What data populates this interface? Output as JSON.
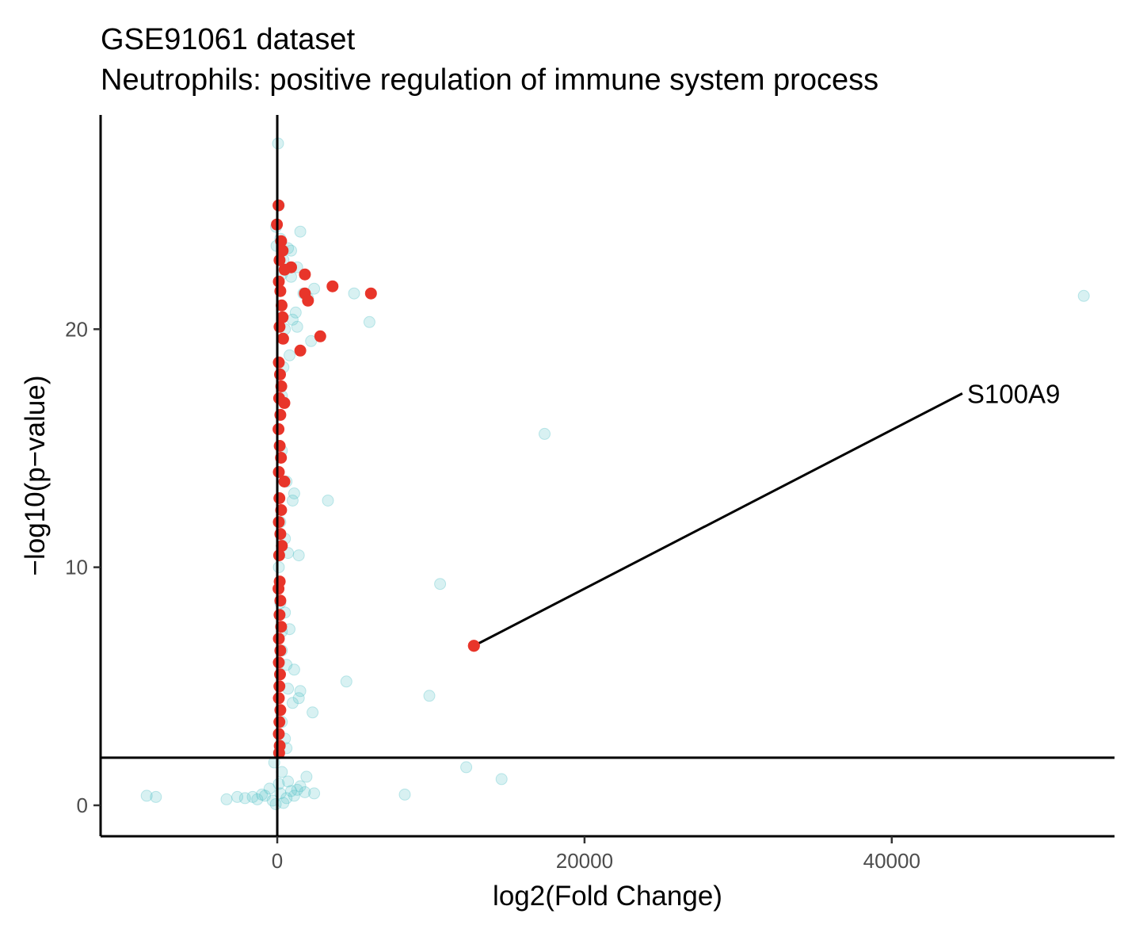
{
  "chart_data": {
    "type": "scatter",
    "title": "GSE91061 dataset",
    "subtitle": "Neutrophils: positive regulation of immune system process",
    "xlabel": "log2(Fold Change)",
    "ylabel": "−log10(p−value)",
    "xlim": [
      -11500,
      54500
    ],
    "ylim": [
      -1.3,
      29
    ],
    "x_ticks": [
      0,
      20000,
      40000
    ],
    "x_tick_labels": [
      "0",
      "20000",
      "40000"
    ],
    "y_ticks": [
      0,
      10,
      20
    ],
    "y_tick_labels": [
      "0",
      "10",
      "20"
    ],
    "grid": false,
    "legend": "none",
    "reference_lines": {
      "vertical_x": 0,
      "horizontal_y": 2
    },
    "colors": {
      "background_points": "#4fbfc6",
      "highlighted_points": "#e8352a",
      "reference_lines": "#000000"
    },
    "series": [
      {
        "role": "background",
        "points": [
          [
            50,
            27.8
          ],
          [
            100,
            25.2
          ],
          [
            -80,
            24.3
          ],
          [
            1500,
            24.1
          ],
          [
            200,
            23.8
          ],
          [
            -50,
            23.5
          ],
          [
            700,
            23.4
          ],
          [
            900,
            23.3
          ],
          [
            400,
            22.9
          ],
          [
            1300,
            22.6
          ],
          [
            300,
            22.3
          ],
          [
            900,
            22.2
          ],
          [
            2400,
            21.7
          ],
          [
            5000,
            21.5
          ],
          [
            1700,
            21.5
          ],
          [
            52500,
            21.4
          ],
          [
            2000,
            21.3
          ],
          [
            1200,
            20.7
          ],
          [
            1000,
            20.4
          ],
          [
            6000,
            20.3
          ],
          [
            1300,
            20.1
          ],
          [
            500,
            20.0
          ],
          [
            2200,
            19.5
          ],
          [
            800,
            18.9
          ],
          [
            400,
            18.4
          ],
          [
            300,
            17.2
          ],
          [
            17400,
            15.6
          ],
          [
            300,
            14.9
          ],
          [
            600,
            13.6
          ],
          [
            1100,
            13.1
          ],
          [
            1000,
            12.8
          ],
          [
            3300,
            12.8
          ],
          [
            200,
            11.9
          ],
          [
            500,
            11.2
          ],
          [
            700,
            10.6
          ],
          [
            1400,
            10.5
          ],
          [
            100,
            10.0
          ],
          [
            10600,
            9.3
          ],
          [
            200,
            8.5
          ],
          [
            500,
            8.1
          ],
          [
            300,
            7.3
          ],
          [
            800,
            7.4
          ],
          [
            300,
            6.5
          ],
          [
            600,
            5.9
          ],
          [
            1100,
            5.7
          ],
          [
            4500,
            5.2
          ],
          [
            700,
            4.9
          ],
          [
            1500,
            4.8
          ],
          [
            1400,
            4.5
          ],
          [
            1000,
            4.3
          ],
          [
            9900,
            4.6
          ],
          [
            2300,
            3.9
          ],
          [
            300,
            3.5
          ],
          [
            500,
            2.8
          ],
          [
            600,
            2.4
          ],
          [
            12300,
            1.6
          ],
          [
            14600,
            1.1
          ],
          [
            1900,
            1.2
          ],
          [
            1500,
            0.8
          ],
          [
            900,
            0.6
          ],
          [
            -800,
            0.4
          ],
          [
            -1600,
            0.35
          ],
          [
            2400,
            0.5
          ],
          [
            8300,
            0.45
          ],
          [
            -8500,
            0.4
          ],
          [
            -7900,
            0.35
          ],
          [
            -2600,
            0.35
          ],
          [
            -3300,
            0.25
          ],
          [
            -2100,
            0.3
          ],
          [
            -1300,
            0.25
          ],
          [
            600,
            0.3
          ],
          [
            1100,
            0.4
          ],
          [
            -300,
            0.2
          ],
          [
            400,
            0.1
          ],
          [
            200,
            0.5
          ],
          [
            -500,
            0.7
          ],
          [
            100,
            0.9
          ],
          [
            300,
            1.4
          ],
          [
            -200,
            1.8
          ],
          [
            100,
            2.2
          ],
          [
            -100,
            0.05
          ],
          [
            1800,
            0.55
          ],
          [
            1300,
            0.65
          ],
          [
            700,
            1.0
          ],
          [
            -1000,
            0.45
          ]
        ]
      },
      {
        "role": "highlighted",
        "points": [
          [
            80,
            25.2
          ],
          [
            -20,
            24.4
          ],
          [
            250,
            23.7
          ],
          [
            350,
            23.3
          ],
          [
            150,
            22.9
          ],
          [
            900,
            22.6
          ],
          [
            1800,
            22.3
          ],
          [
            480,
            22.5
          ],
          [
            3600,
            21.8
          ],
          [
            6100,
            21.5
          ],
          [
            1800,
            21.5
          ],
          [
            2000,
            21.2
          ],
          [
            100,
            22.0
          ],
          [
            200,
            21.6
          ],
          [
            280,
            21.0
          ],
          [
            350,
            20.5
          ],
          [
            150,
            20.1
          ],
          [
            380,
            19.6
          ],
          [
            2800,
            19.7
          ],
          [
            1500,
            19.1
          ],
          [
            100,
            18.6
          ],
          [
            180,
            18.1
          ],
          [
            260,
            17.6
          ],
          [
            120,
            17.1
          ],
          [
            460,
            16.9
          ],
          [
            200,
            16.4
          ],
          [
            80,
            15.8
          ],
          [
            160,
            15.1
          ],
          [
            240,
            14.6
          ],
          [
            100,
            14.0
          ],
          [
            460,
            13.6
          ],
          [
            140,
            12.9
          ],
          [
            250,
            12.4
          ],
          [
            100,
            11.9
          ],
          [
            200,
            11.4
          ],
          [
            300,
            10.9
          ],
          [
            120,
            10.5
          ],
          [
            160,
            9.4
          ],
          [
            80,
            9.1
          ],
          [
            200,
            8.6
          ],
          [
            150,
            8.0
          ],
          [
            250,
            7.5
          ],
          [
            100,
            7.0
          ],
          [
            200,
            6.5
          ],
          [
            100,
            6.0
          ],
          [
            180,
            5.5
          ],
          [
            140,
            5.0
          ],
          [
            100,
            4.5
          ],
          [
            200,
            4.0
          ],
          [
            140,
            3.5
          ],
          [
            100,
            3.0
          ],
          [
            160,
            2.5
          ],
          [
            120,
            2.2
          ],
          [
            12800,
            6.7
          ]
        ]
      }
    ],
    "annotations": [
      {
        "text": "S100A9",
        "point": [
          12800,
          6.7
        ],
        "label_at": [
          44800,
          17.3
        ]
      }
    ]
  }
}
